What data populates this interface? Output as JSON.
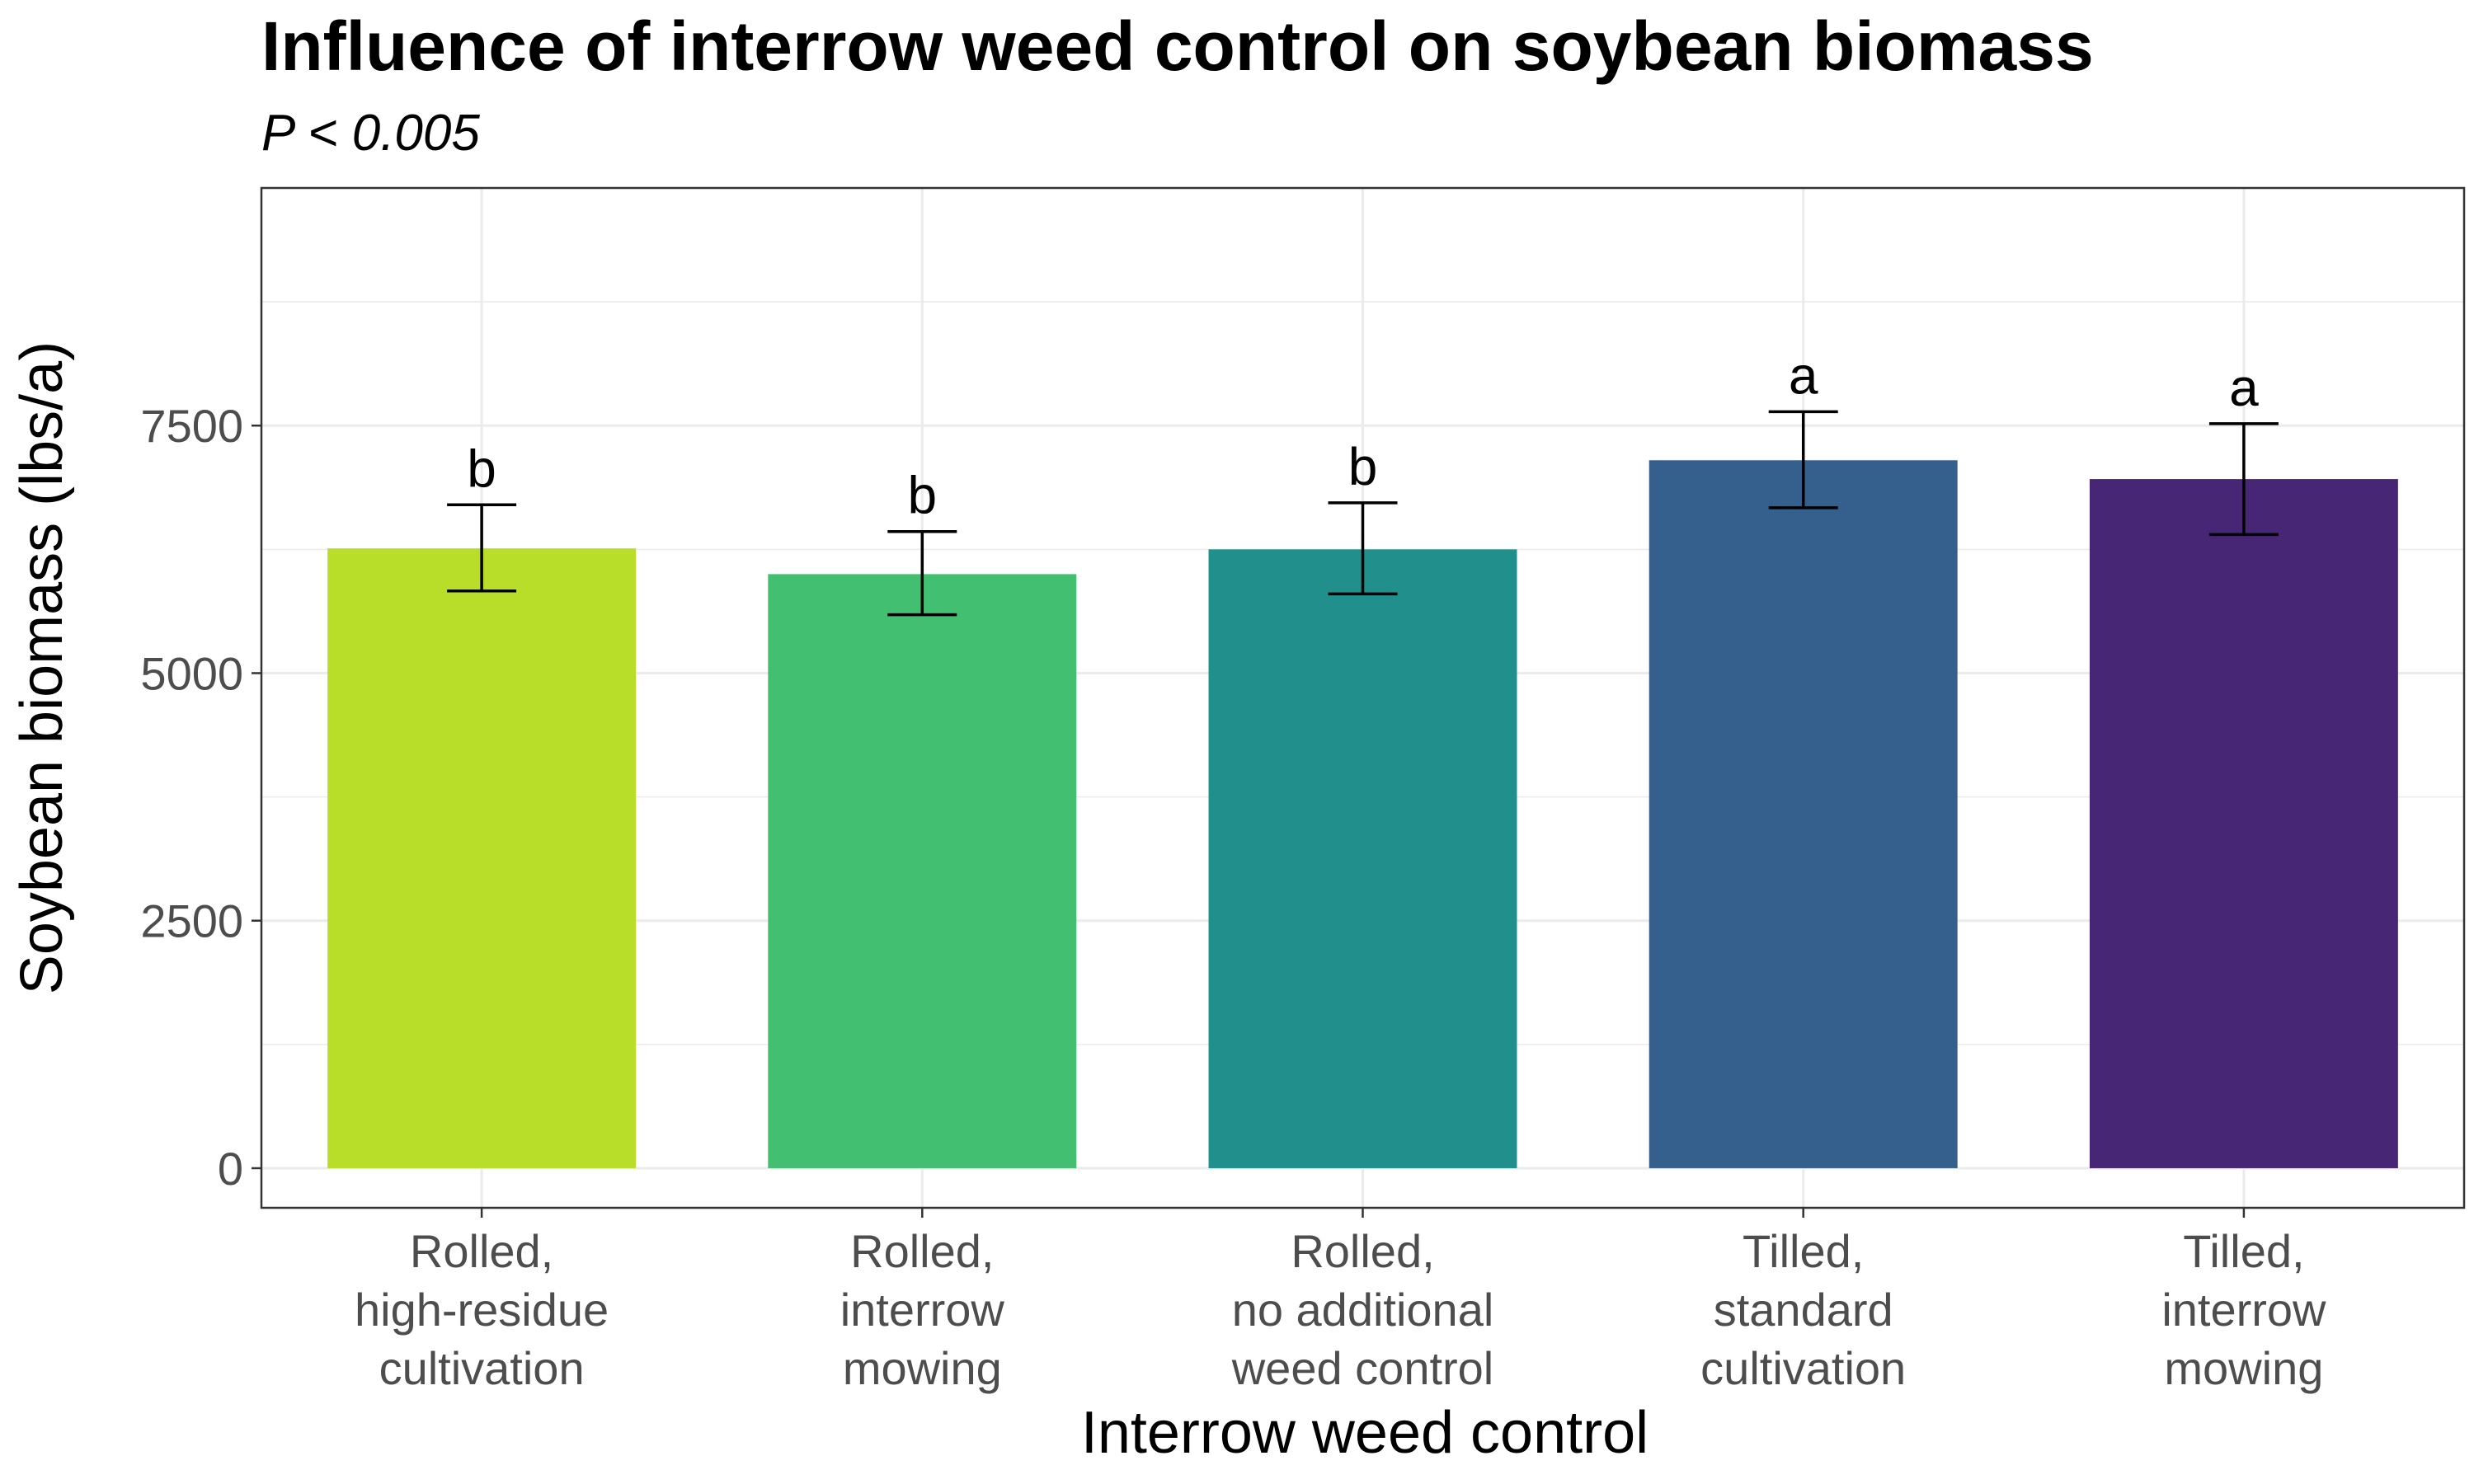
{
  "chart_data": {
    "type": "bar",
    "title": "Influence of interrow weed control on soybean biomass",
    "subtitle": "P < 0.005",
    "xlabel": "Interrow weed control",
    "ylabel": "Soybean biomass (lbs/a)",
    "ylim": [
      -400,
      9900
    ],
    "yticks": [
      0,
      2500,
      5000,
      7500
    ],
    "ytick_labels": [
      "0",
      "2500",
      "5000",
      "7500"
    ],
    "grid": true,
    "legend": "none",
    "categories": [
      [
        "Rolled,",
        "high-residue",
        "cultivation"
      ],
      [
        "Rolled,",
        "interrow",
        "mowing"
      ],
      [
        "Rolled,",
        "no additional",
        "weed control"
      ],
      [
        "Tilled,",
        "standard",
        "cultivation"
      ],
      [
        "Tilled,",
        "interrow",
        "mowing"
      ]
    ],
    "values": [
      6260,
      6000,
      6250,
      7150,
      6960
    ],
    "error_low": [
      5830,
      5590,
      5800,
      6670,
      6400
    ],
    "error_high": [
      6700,
      6430,
      6720,
      7640,
      7520
    ],
    "significance": [
      "b",
      "b",
      "b",
      "a",
      "a"
    ],
    "colors": [
      "#b8de29",
      "#43bf71",
      "#21908c",
      "#35608d",
      "#482676"
    ]
  }
}
